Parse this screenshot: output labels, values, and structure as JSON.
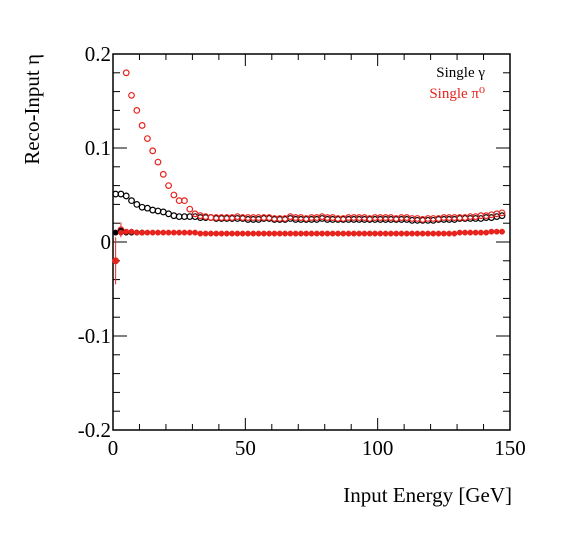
{
  "chart_data": {
    "type": "scatter",
    "title": "",
    "xlabel": "Input Energy [GeV]",
    "ylabel": "Reco-Input η",
    "xlim": [
      0,
      150
    ],
    "ylim": [
      -0.2,
      0.2
    ],
    "x_ticks": [
      0,
      50,
      100,
      150
    ],
    "x_tick_labels": [
      "0",
      "50",
      "100",
      "150"
    ],
    "y_ticks": [
      -0.2,
      -0.1,
      0,
      0.1,
      0.2
    ],
    "y_tick_labels": [
      "-0.2",
      "-0.1",
      "0",
      "0.1",
      "0.2"
    ],
    "grid": false,
    "legend_position": "top-right",
    "legend": [
      "Single γ",
      "Single π⁰"
    ],
    "series": [
      {
        "name": "Single γ",
        "marker": "open-circle",
        "color": "#000000",
        "x": [
          1,
          3,
          5,
          7,
          9,
          11,
          13,
          15,
          17,
          19,
          21,
          23,
          25,
          27,
          29,
          31,
          33,
          35,
          37,
          39,
          41,
          43,
          45,
          47,
          49,
          51,
          53,
          55,
          57,
          59,
          61,
          63,
          65,
          67,
          69,
          71,
          73,
          75,
          77,
          79,
          81,
          83,
          85,
          87,
          89,
          91,
          93,
          95,
          97,
          99,
          101,
          103,
          105,
          107,
          109,
          111,
          113,
          115,
          117,
          119,
          121,
          123,
          125,
          127,
          129,
          131,
          133,
          135,
          137,
          139,
          141,
          143,
          145,
          147
        ],
        "y": [
          0.051,
          0.051,
          0.049,
          0.044,
          0.04,
          0.037,
          0.036,
          0.034,
          0.033,
          0.032,
          0.03,
          0.028,
          0.027,
          0.027,
          0.027,
          0.027,
          0.026,
          0.026,
          0.026,
          0.025,
          0.025,
          0.025,
          0.025,
          0.025,
          0.025,
          0.024,
          0.024,
          0.024,
          0.025,
          0.025,
          0.024,
          0.024,
          0.024,
          0.025,
          0.024,
          0.024,
          0.024,
          0.024,
          0.024,
          0.025,
          0.024,
          0.024,
          0.024,
          0.024,
          0.024,
          0.024,
          0.024,
          0.024,
          0.024,
          0.024,
          0.024,
          0.024,
          0.024,
          0.024,
          0.024,
          0.024,
          0.023,
          0.023,
          0.023,
          0.023,
          0.023,
          0.024,
          0.024,
          0.024,
          0.024,
          0.025,
          0.025,
          0.025,
          0.025,
          0.025,
          0.026,
          0.026,
          0.027,
          0.028
        ]
      },
      {
        "name": "Single π⁰",
        "marker": "open-circle",
        "color": "#e8231d",
        "x": [
          1,
          3,
          5,
          7,
          9,
          11,
          13,
          15,
          17,
          19,
          21,
          23,
          25,
          27,
          29,
          31,
          33,
          35,
          37,
          39,
          41,
          43,
          45,
          47,
          49,
          51,
          53,
          55,
          57,
          59,
          61,
          63,
          65,
          67,
          69,
          71,
          73,
          75,
          77,
          79,
          81,
          83,
          85,
          87,
          89,
          91,
          93,
          95,
          97,
          99,
          101,
          103,
          105,
          107,
          109,
          111,
          113,
          115,
          117,
          119,
          121,
          123,
          125,
          127,
          129,
          131,
          133,
          135,
          137,
          139,
          141,
          143,
          145,
          147
        ],
        "y": [
          -0.02,
          0.013,
          0.18,
          0.156,
          0.14,
          0.124,
          0.11,
          0.097,
          0.085,
          0.072,
          0.06,
          0.05,
          0.044,
          0.044,
          0.035,
          0.03,
          0.028,
          0.027,
          0.026,
          0.026,
          0.026,
          0.026,
          0.026,
          0.027,
          0.026,
          0.026,
          0.026,
          0.026,
          0.026,
          0.026,
          0.025,
          0.025,
          0.025,
          0.027,
          0.026,
          0.026,
          0.025,
          0.026,
          0.026,
          0.027,
          0.026,
          0.026,
          0.025,
          0.025,
          0.026,
          0.026,
          0.026,
          0.026,
          0.025,
          0.026,
          0.026,
          0.026,
          0.026,
          0.025,
          0.026,
          0.026,
          0.025,
          0.025,
          0.024,
          0.025,
          0.025,
          0.025,
          0.026,
          0.026,
          0.026,
          0.026,
          0.026,
          0.027,
          0.027,
          0.028,
          0.028,
          0.029,
          0.03,
          0.031
        ]
      },
      {
        "name": "",
        "marker": "filled-circle",
        "color": "#000000",
        "x": [
          1,
          3,
          5,
          7,
          9,
          11
        ],
        "y": [
          0.01,
          0.012,
          0.01,
          0.01,
          0.01,
          0.01
        ]
      },
      {
        "name": "",
        "marker": "filled-circle",
        "color": "#e8231d",
        "x": [
          1,
          3,
          5,
          7,
          9,
          11,
          13,
          15,
          17,
          19,
          21,
          23,
          25,
          27,
          29,
          31,
          33,
          35,
          37,
          39,
          41,
          43,
          45,
          47,
          49,
          51,
          53,
          55,
          57,
          59,
          61,
          63,
          65,
          67,
          69,
          71,
          73,
          75,
          77,
          79,
          81,
          83,
          85,
          87,
          89,
          91,
          93,
          95,
          97,
          99,
          101,
          103,
          105,
          107,
          109,
          111,
          113,
          115,
          117,
          119,
          121,
          123,
          125,
          127,
          129,
          131,
          133,
          135,
          137,
          139,
          141,
          143,
          145,
          147
        ],
        "y": [
          -0.02,
          0.01,
          0.011,
          0.011,
          0.01,
          0.01,
          0.01,
          0.01,
          0.01,
          0.01,
          0.01,
          0.01,
          0.01,
          0.01,
          0.01,
          0.01,
          0.009,
          0.009,
          0.009,
          0.009,
          0.009,
          0.009,
          0.009,
          0.009,
          0.009,
          0.009,
          0.009,
          0.009,
          0.009,
          0.009,
          0.009,
          0.009,
          0.009,
          0.009,
          0.009,
          0.009,
          0.009,
          0.009,
          0.009,
          0.009,
          0.009,
          0.009,
          0.009,
          0.009,
          0.009,
          0.009,
          0.009,
          0.009,
          0.009,
          0.009,
          0.009,
          0.009,
          0.009,
          0.009,
          0.009,
          0.009,
          0.009,
          0.009,
          0.009,
          0.009,
          0.009,
          0.009,
          0.009,
          0.009,
          0.009,
          0.01,
          0.01,
          0.01,
          0.01,
          0.01,
          0.01,
          0.011,
          0.011,
          0.011
        ]
      }
    ],
    "error_bars": [
      {
        "series": "Single π⁰",
        "x": 1,
        "y": -0.02,
        "yerr": 0.025
      },
      {
        "series": "Single π⁰",
        "x": 3,
        "y": 0.013,
        "yerr": 0.008
      }
    ]
  }
}
